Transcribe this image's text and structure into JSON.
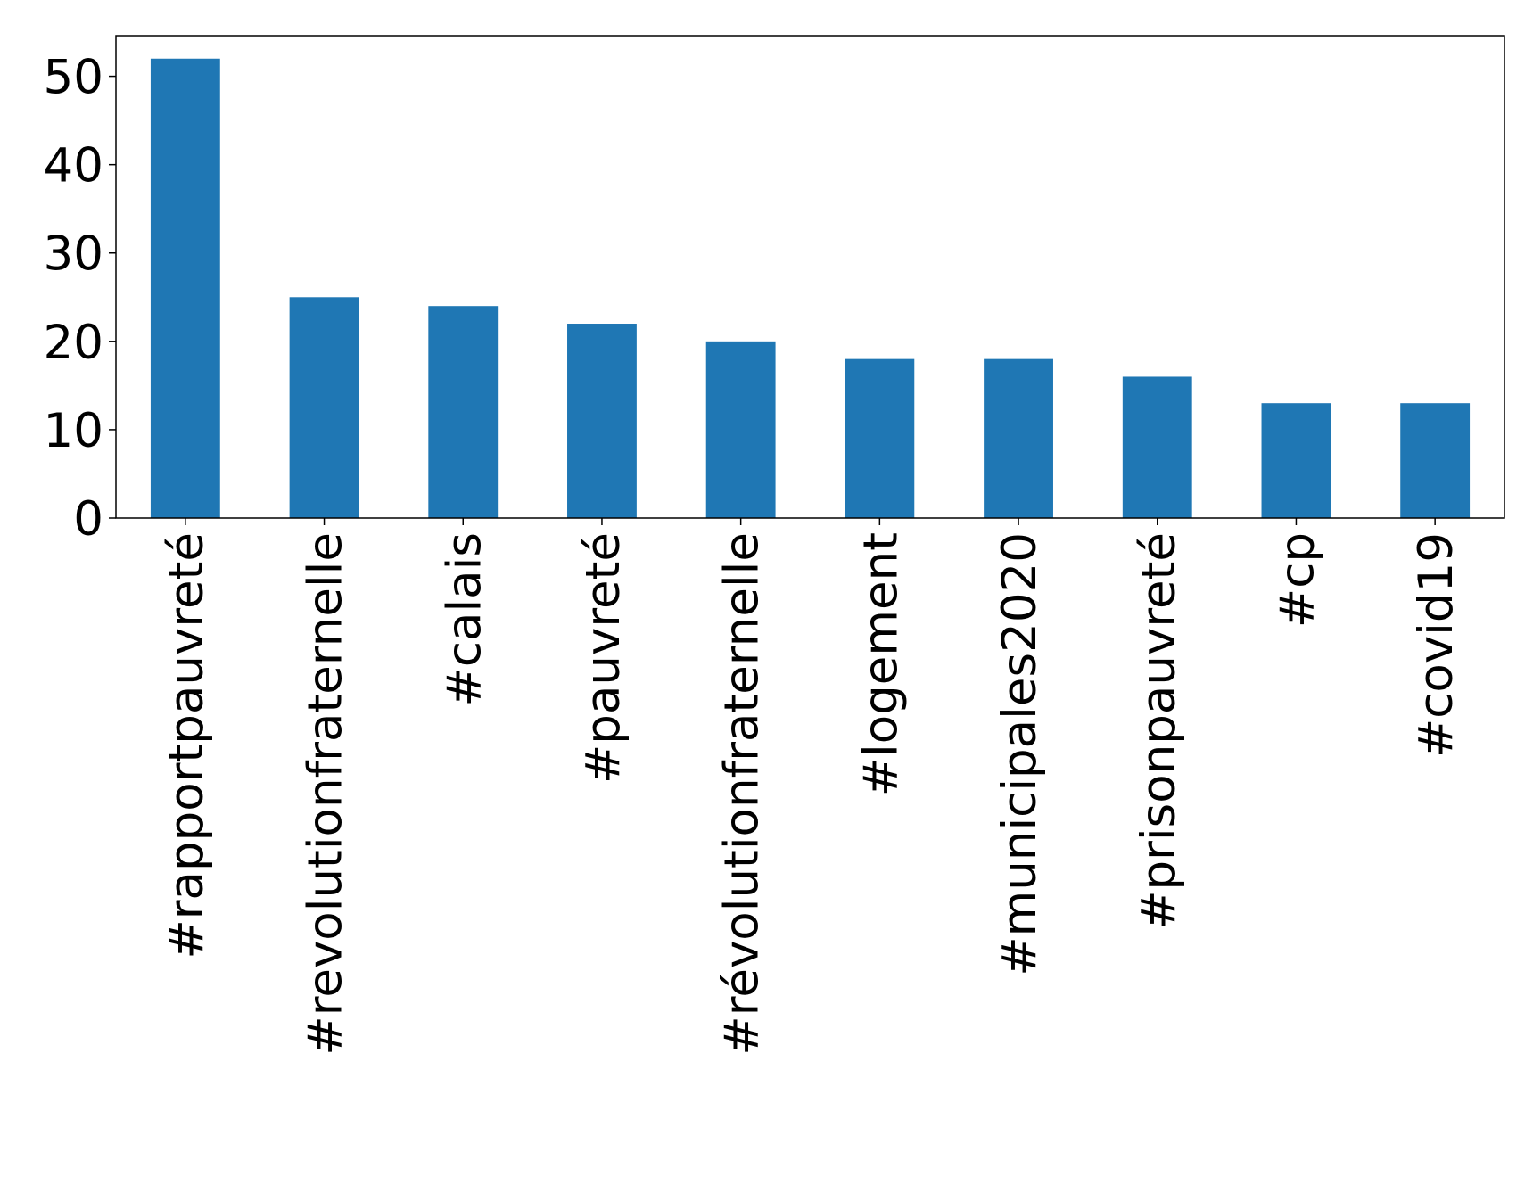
{
  "chart_data": {
    "type": "bar",
    "categories": [
      "#rapportpauvreté",
      "#revolutionfraternelle",
      "#calais",
      "#pauvreté",
      "#révolutionfraternelle",
      "#logement",
      "#municipales2020",
      "#prisonpauvreté",
      "#cp",
      "#covid19"
    ],
    "values": [
      52,
      25,
      24,
      22,
      20,
      18,
      18,
      16,
      13,
      13
    ],
    "color": "#1f77b4",
    "ylim": [
      0,
      54.6
    ],
    "yticks": [
      0,
      10,
      20,
      30,
      40,
      50
    ],
    "grid": false
  }
}
